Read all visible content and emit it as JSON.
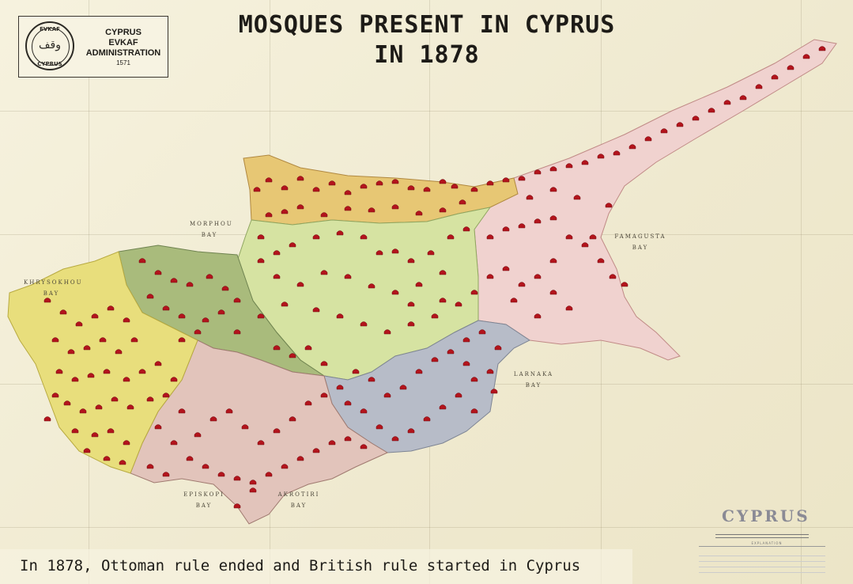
{
  "title": {
    "line1": "MOSQUES PRESENT IN CYPRUS",
    "line2": "IN 1878"
  },
  "logo": {
    "seal_top": "EVKAF",
    "seal_bottom": "CYPRUS",
    "line1": "CYPRUS",
    "line2": "EVKAF",
    "line3": "ADMINISTRATION",
    "year": "1571"
  },
  "bays": {
    "morphou": [
      "MORPHOU",
      "BAY"
    ],
    "khrysokhou": [
      "KHRYSOKHOU",
      "BAY"
    ],
    "famagusta": [
      "FAMAGUSTA",
      "BAY"
    ],
    "larnaka": [
      "LARNAKA",
      "BAY"
    ],
    "episkopi": [
      "EPISKOPI",
      "BAY"
    ],
    "akrotiri": [
      "AKROTIRI",
      "BAY"
    ]
  },
  "legend": {
    "title": "CYPRUS",
    "heading": "EXPLANATION"
  },
  "caption": "In 1878, Ottoman rule ended and British rule started in Cyprus",
  "colors": {
    "mosque_marker": "#b3141c",
    "district_kyrenia": "#e7c774",
    "district_nicosia": "#d6e3a2",
    "district_famagusta": "#f0d2cf",
    "district_larnaca": "#b7bcc8",
    "district_limassol": "#e2c4bb",
    "district_paphos": "#e8de7c",
    "district_solea": "#a9bb7c"
  }
}
